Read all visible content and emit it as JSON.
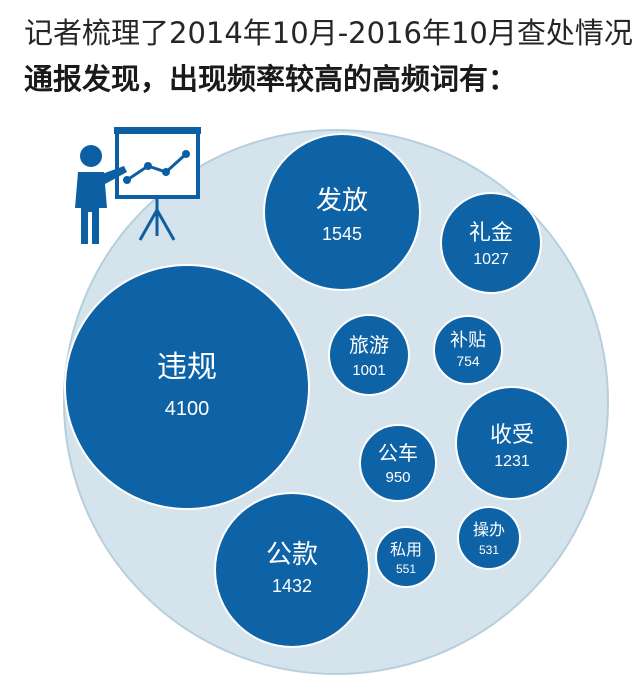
{
  "header": {
    "line1": "记者梳理了2014年10月-2016年10月查处情况",
    "line2": "通报发现，出现频率较高的高频词有："
  },
  "colors": {
    "outer_circle": "#d5e3ec",
    "outer_stroke": "#b7cfdd",
    "bubble": "#0e62a6",
    "bubble_stroke": "#ffffff",
    "icon": "#0d5fa3"
  },
  "presenter_icon": "presenter-with-chart-board-icon",
  "chart_data": {
    "type": "bubble",
    "items": [
      {
        "word": "违规",
        "count": "4100",
        "value": 4100
      },
      {
        "word": "发放",
        "count": "1545",
        "value": 1545
      },
      {
        "word": "公款",
        "count": "1432",
        "value": 1432
      },
      {
        "word": "收受",
        "count": "1231",
        "value": 1231
      },
      {
        "word": "礼金",
        "count": "1027",
        "value": 1027
      },
      {
        "word": "旅游",
        "count": "1001",
        "value": 1001
      },
      {
        "word": "公车",
        "count": "950",
        "value": 950
      },
      {
        "word": "补贴",
        "count": "754",
        "value": 754
      },
      {
        "word": "私用",
        "count": "551",
        "value": 551
      },
      {
        "word": "操办",
        "count": "531",
        "value": 531
      }
    ]
  }
}
